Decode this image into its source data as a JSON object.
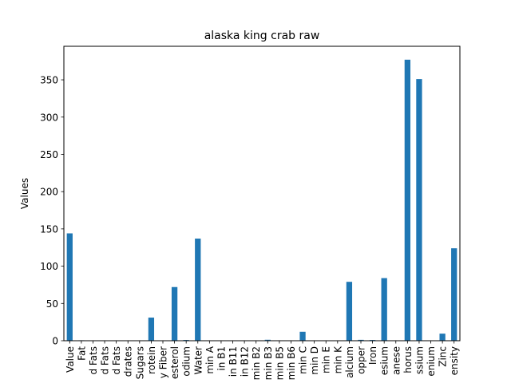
{
  "chart_data": {
    "type": "bar",
    "title": "alaska king crab raw",
    "xlabel": "",
    "ylabel": "Values",
    "ylim": [
      0,
      395
    ],
    "yticks": [
      0,
      50,
      100,
      150,
      200,
      250,
      300,
      350
    ],
    "grid": false,
    "legend": "none",
    "bar_color": "#1f77b4",
    "categories": [
      "Value",
      "Fat",
      "d Fats",
      "d Fats",
      "d Fats",
      "drates",
      "Sugars",
      "rotein",
      "y Fiber",
      "esterol",
      "odium",
      "Water",
      "min A",
      "in B1",
      "in B11",
      "in B12",
      "min B2",
      "min B3",
      "min B5",
      "min B6",
      "min C",
      "min D",
      "min E",
      "min K",
      "alcium",
      "opper",
      "Iron",
      "esium",
      "anese",
      "horus",
      "ssium",
      "enium",
      "Zinc",
      "ensity"
    ],
    "values": [
      144,
      0.6,
      0.1,
      0.1,
      0.2,
      0,
      0,
      31,
      0,
      72,
      1,
      137,
      0,
      0.1,
      0,
      0,
      0.1,
      1.3,
      0.4,
      0.2,
      12,
      0,
      0,
      0,
      79,
      1.2,
      1,
      84,
      0,
      377,
      351,
      0,
      9.5,
      124
    ]
  }
}
